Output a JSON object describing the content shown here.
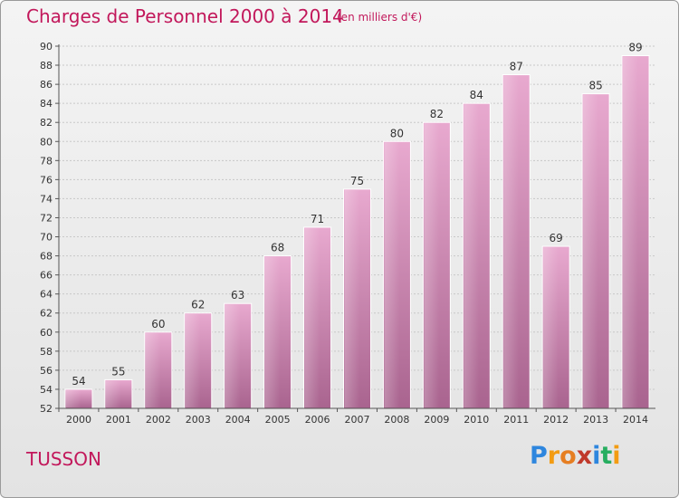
{
  "chart_data": {
    "type": "bar",
    "title": "Charges de Personnel 2000 à 2014",
    "subtitle": "(en milliers d'€)",
    "categories": [
      "2000",
      "2001",
      "2002",
      "2003",
      "2004",
      "2005",
      "2006",
      "2007",
      "2008",
      "2009",
      "2010",
      "2011",
      "2012",
      "2013",
      "2014"
    ],
    "values": [
      54,
      55,
      60,
      62,
      63,
      68,
      71,
      75,
      80,
      82,
      84,
      87,
      69,
      85,
      89
    ],
    "ylim": [
      52,
      90
    ],
    "yticks": [
      52,
      54,
      56,
      58,
      60,
      62,
      64,
      66,
      68,
      70,
      72,
      74,
      76,
      78,
      80,
      82,
      84,
      86,
      88,
      90
    ],
    "grid": true,
    "bar_color": "#d98bb5",
    "label": "TUSSON"
  },
  "logo": {
    "letters": [
      "P",
      "r",
      "o",
      "x",
      "i",
      "t",
      "i"
    ],
    "colors": [
      "#2e86de",
      "#f39c12",
      "#e67e22",
      "#c0392b",
      "#2e86de",
      "#27ae60",
      "#f39c12"
    ]
  },
  "colors": {
    "accent": "#c2185b"
  }
}
